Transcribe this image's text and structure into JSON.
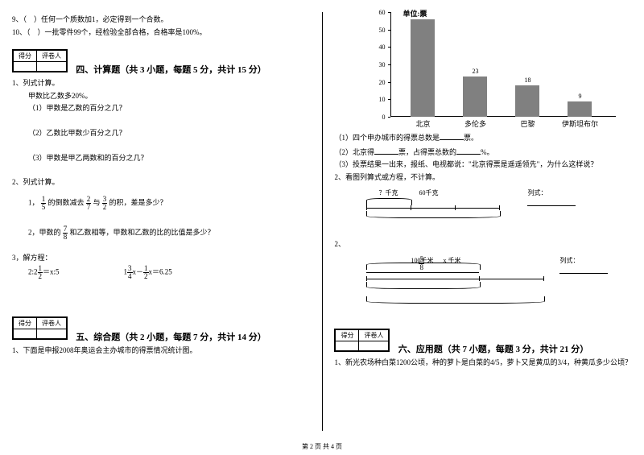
{
  "q9": "9、（　）任何一个质数加1，必定得到一个合数。",
  "q10": "10、（　）一批零件99个，经检验全部合格，合格率是100%。",
  "scorebox": {
    "c1": "得分",
    "c2": "评卷人"
  },
  "sec4": {
    "title": "四、计算题（共 3 小题，每题 5 分，共计 15 分）"
  },
  "p4_1": "1、列式计算。",
  "p4_1_pre": "甲数比乙数多20%。",
  "p4_1_1": "（1）甲数是乙数的百分之几？",
  "p4_1_2": "（2）乙数比甲数少百分之几？",
  "p4_1_3": "（3）甲数是甲乙两数和的百分之几？",
  "p4_2": "2、列式计算。",
  "p4_2_1a": "1，",
  "p4_2_1b": "的倒数减去",
  "p4_2_1c": "与",
  "p4_2_1d": "的积，差是多少？",
  "p4_2_2a": "2，甲数的",
  "p4_2_2b": "和乙数相等，甲数和乙数的比的比值是多少？",
  "p4_3": "3，解方程：",
  "eq1a": "2:2",
  "eq1b": "＝x:5",
  "eq2a": "1",
  "eq2b": "x－",
  "eq2c": "x＝6.25",
  "sec5": {
    "title": "五、综合题（共 2 小题，每题 7 分，共计 14 分）"
  },
  "p5_1": "1、下面是申报2008年奥运会主办城市的得票情况统计图。",
  "chart": {
    "unit": "单位:票",
    "ymax": 60,
    "ystep": 10,
    "yticks": [
      0,
      10,
      20,
      30,
      40,
      50,
      60
    ],
    "bars": [
      {
        "label": "北京",
        "value": 56,
        "x": 55
      },
      {
        "label": "多伦多",
        "value": 23,
        "x": 120
      },
      {
        "label": "巴黎",
        "value": 18,
        "x": 185
      },
      {
        "label": "伊斯坦布尔",
        "value": 9,
        "x": 250
      }
    ],
    "bar_color": "#808080"
  },
  "p5_1_1a": "（1）四个申办城市的得票总数是",
  "p5_1_1b": "票。",
  "p5_1_2a": "（2）北京得",
  "p5_1_2b": "票，占得票总数的",
  "p5_1_2c": "%。",
  "p5_1_3": "（3）投票结果一出来，报纸、电视都说：\"北京得票是遥遥领先\"，为什么这样说？",
  "p5_2": "2、看图列算式或方程，不计算。",
  "d1": {
    "top": "？千克",
    "bottom": "60千克",
    "list": "列式："
  },
  "d2": {
    "pre": "2、",
    "frac_n": "5",
    "frac_d": "8",
    "bottom": "100千米",
    "xlab": "x 千米",
    "list": "列式："
  },
  "sec6": {
    "title": "六、应用题（共 7 小题，每题 3 分，共计 21 分）"
  },
  "p6_1": "1、新光农场种白菜1200公顷，种的萝卜是白菜的4/5，萝卜又是黄瓜的3/4，种黄瓜多少公顷？",
  "footer": "第 2 页 共 4 页",
  "fr": {
    "f15n": "1",
    "f15d": "5",
    "f27n": "2",
    "f27d": "7",
    "f32n": "3",
    "f32d": "2",
    "f78n": "7",
    "f78d": "8",
    "f12n": "1",
    "f12d": "2",
    "f34n": "3",
    "f34d": "4"
  }
}
